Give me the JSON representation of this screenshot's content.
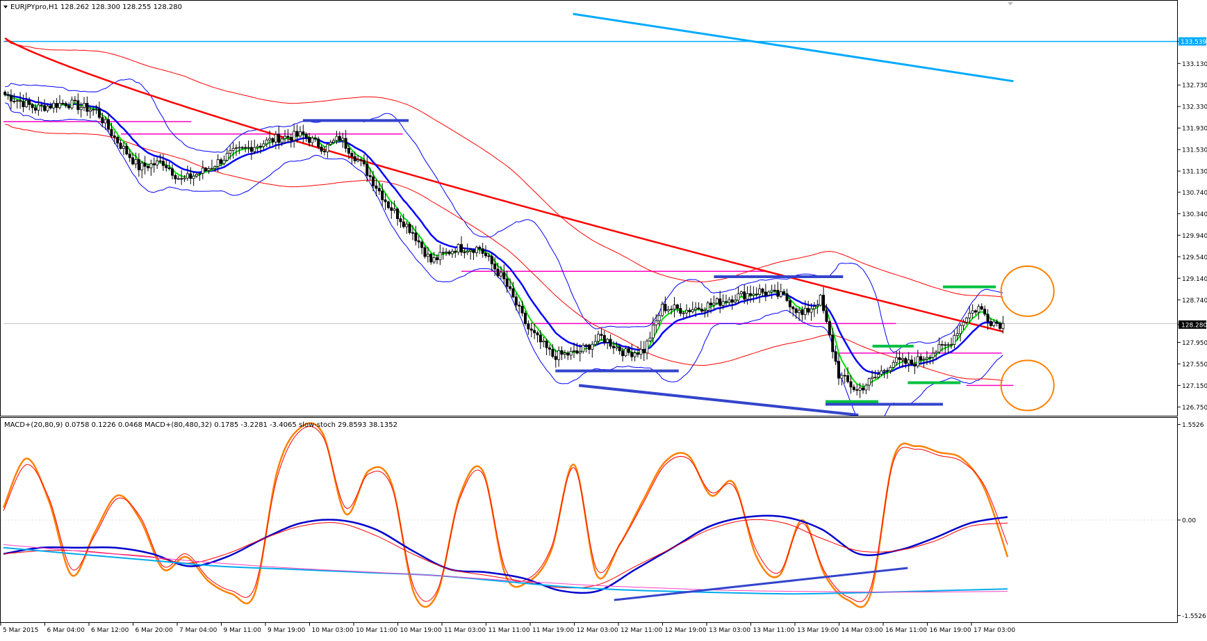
{
  "header": {
    "symbol_line": "EURJPYpro,H1  128.262 128.300 128.255 128.280",
    "indicator_line": "MACD+(20,80,9) 0.0758 0.1226 0.0468  MACD+(80,480,32) 0.1785 -3.2281 -3.4065  slow-stoch 29.8593 38.1352"
  },
  "chart_data": [
    {
      "type": "candlestick",
      "title": "EURJPYpro,H1",
      "ohlc_readout": {
        "open": 128.262,
        "high": 128.3,
        "low": 128.255,
        "close": 128.28
      },
      "ylim": [
        126.6,
        134.05
      ],
      "y_ticks": [
        "133.539",
        "133.130",
        "132.730",
        "132.330",
        "131.930",
        "131.530",
        "131.130",
        "130.740",
        "130.340",
        "129.940",
        "129.540",
        "129.140",
        "128.740",
        "128.280",
        "127.950",
        "127.550",
        "127.150",
        "126.750"
      ],
      "current_price_label": "128.280",
      "x_ticks": [
        "5 Mar 2015",
        "6 Mar 04:00",
        "6 Mar 12:00",
        "6 Mar 20:00",
        "7 Mar 04:00",
        "9 Mar 11:00",
        "9 Mar 19:00",
        "10 Mar 03:00",
        "10 Mar 11:00",
        "10 Mar 19:00",
        "11 Mar 03:00",
        "11 Mar 11:00",
        "11 Mar 19:00",
        "12 Mar 03:00",
        "12 Mar 11:00",
        "12 Mar 19:00",
        "13 Mar 03:00",
        "13 Mar 11:00",
        "13 Mar 19:00",
        "14 Mar 03:00",
        "16 Mar 11:00",
        "16 Mar 19:00",
        "17 Mar 03:00"
      ],
      "close_path": [
        [
          0,
          132.55
        ],
        [
          10,
          132.3
        ],
        [
          20,
          132.4
        ],
        [
          30,
          132.25
        ],
        [
          36,
          131.75
        ],
        [
          44,
          131.2
        ],
        [
          52,
          131.3
        ],
        [
          58,
          130.95
        ],
        [
          66,
          131.15
        ],
        [
          74,
          131.45
        ],
        [
          82,
          131.6
        ],
        [
          90,
          131.75
        ],
        [
          98,
          131.8
        ],
        [
          105,
          131.55
        ],
        [
          110,
          131.75
        ],
        [
          118,
          131.2
        ],
        [
          126,
          130.5
        ],
        [
          134,
          130.0
        ],
        [
          140,
          129.45
        ],
        [
          148,
          129.7
        ],
        [
          156,
          129.7
        ],
        [
          164,
          129.1
        ],
        [
          172,
          128.2
        ],
        [
          180,
          127.7
        ],
        [
          188,
          127.75
        ],
        [
          196,
          128.05
        ],
        [
          204,
          127.75
        ],
        [
          210,
          127.8
        ],
        [
          216,
          128.6
        ],
        [
          224,
          128.55
        ],
        [
          232,
          128.65
        ],
        [
          240,
          128.8
        ],
        [
          248,
          128.9
        ],
        [
          256,
          128.8
        ],
        [
          262,
          128.45
        ],
        [
          268,
          128.75
        ],
        [
          274,
          127.35
        ],
        [
          280,
          127.05
        ],
        [
          286,
          127.3
        ],
        [
          292,
          127.6
        ],
        [
          298,
          127.55
        ],
        [
          304,
          127.75
        ],
        [
          310,
          127.9
        ],
        [
          316,
          128.45
        ],
        [
          320,
          128.6
        ],
        [
          324,
          128.35
        ],
        [
          328,
          128.28
        ]
      ],
      "overlays": [
        {
          "name": "MA fast",
          "color": "#00e000"
        },
        {
          "name": "MA mid",
          "color": "#0000ff"
        },
        {
          "name": "MA slow",
          "color": "#ff0000"
        },
        {
          "name": "Bollinger",
          "color": "#0000ff"
        },
        {
          "name": "Envelope",
          "color": "#ff0000"
        },
        {
          "name": "Long-term MA",
          "color": "#00aaff"
        }
      ],
      "horizontal_levels": [
        {
          "price": 133.539,
          "color": "#00aaff",
          "x0": 0,
          "x1": 1.0
        },
        {
          "price": 128.3,
          "color": "#c0c0c0",
          "x0": 0,
          "x1": 1.0
        },
        {
          "price": 132.05,
          "color": "#ff00c0",
          "x0": 0.0,
          "x1": 0.16
        },
        {
          "price": 131.82,
          "color": "#ff00c0",
          "x0": 0.1,
          "x1": 0.34
        },
        {
          "price": 129.27,
          "color": "#ff00c0",
          "x0": 0.39,
          "x1": 0.65
        },
        {
          "price": 128.3,
          "color": "#ff00c0",
          "x0": 0.45,
          "x1": 0.76
        },
        {
          "price": 127.75,
          "color": "#ff00c0",
          "x0": 0.71,
          "x1": 0.85
        },
        {
          "price": 127.15,
          "color": "#ff00c0",
          "x0": 0.82,
          "x1": 0.86
        }
      ],
      "segments": [
        {
          "color": "#3344cc",
          "p0": [
            0.255,
            132.07
          ],
          "p1": [
            0.345,
            132.07
          ]
        },
        {
          "color": "#3344cc",
          "p0": [
            0.605,
            129.17
          ],
          "p1": [
            0.715,
            129.17
          ]
        },
        {
          "color": "#3344cc",
          "p0": [
            0.47,
            127.42
          ],
          "p1": [
            0.575,
            127.42
          ]
        },
        {
          "color": "#3344cc",
          "p0": [
            0.7,
            126.8
          ],
          "p1": [
            0.8,
            126.8
          ]
        },
        {
          "color": "#3344cc",
          "p0": [
            0.49,
            127.15
          ],
          "p1": [
            0.728,
            126.6
          ]
        },
        {
          "color": "#00aaff",
          "p0": [
            0.485,
            134.05
          ],
          "p1": [
            0.86,
            132.8
          ]
        },
        {
          "color": "#00c040",
          "p0": [
            0.8,
            128.98
          ],
          "p1": [
            0.845,
            128.98
          ]
        },
        {
          "color": "#00c040",
          "p0": [
            0.74,
            127.88
          ],
          "p1": [
            0.775,
            127.88
          ]
        },
        {
          "color": "#00c040",
          "p0": [
            0.77,
            127.2
          ],
          "p1": [
            0.815,
            127.2
          ]
        },
        {
          "color": "#00c040",
          "p0": [
            0.7,
            126.85
          ],
          "p1": [
            0.745,
            126.85
          ]
        }
      ],
      "annotations": [
        {
          "shape": "circle",
          "color": "#ff8000",
          "center": [
            0.872,
            128.9
          ]
        },
        {
          "shape": "circle",
          "color": "#ff8000",
          "center": [
            0.872,
            127.15
          ]
        }
      ]
    },
    {
      "type": "line",
      "title": "MACD+(20,80,9) / MACD+(80,480,32) / slow-stoch",
      "ylim": [
        -1.65,
        1.65
      ],
      "y_ticks": [
        "1.5526",
        "0.00",
        "-1.5526"
      ],
      "series": [
        {
          "name": "slow-stoch main",
          "color": "#ff8000",
          "values": [
            0.2,
            1.0,
            0.3,
            -0.9,
            -0.2,
            0.4,
            0.0,
            -0.8,
            -0.6,
            -1.0,
            -1.2,
            -1.2,
            0.8,
            1.5,
            1.4,
            0.1,
            0.8,
            0.6,
            -1.2,
            -1.2,
            0.4,
            0.8,
            -0.9,
            -1.0,
            -0.5,
            0.9,
            -0.9,
            -0.4,
            0.3,
            0.95,
            1.05,
            0.4,
            0.6,
            -0.6,
            -0.9,
            0.0,
            -0.9,
            -1.3,
            -1.2,
            1.0,
            1.2,
            1.1,
            1.0,
            0.5,
            -0.6
          ]
        },
        {
          "name": "slow-stoch signal",
          "color": "#ff0000",
          "values": [
            0.15,
            0.9,
            0.35,
            -0.8,
            -0.25,
            0.35,
            0.05,
            -0.75,
            -0.55,
            -0.95,
            -1.15,
            -1.1,
            0.7,
            1.45,
            1.35,
            0.2,
            0.75,
            0.55,
            -1.1,
            -1.15,
            0.35,
            0.75,
            -0.8,
            -0.95,
            -0.45,
            0.85,
            -0.8,
            -0.4,
            0.25,
            0.9,
            1.0,
            0.45,
            0.55,
            -0.5,
            -0.85,
            -0.05,
            -0.85,
            -1.25,
            -1.1,
            0.95,
            1.15,
            1.05,
            0.95,
            0.55,
            -0.4
          ]
        },
        {
          "name": "MACD(20,80,9) main",
          "color": "#0000cc",
          "values": [
            -0.55,
            -0.45,
            -0.45,
            -0.45,
            -0.55,
            -0.75,
            -0.6,
            -0.3,
            -0.05,
            0.0,
            -0.15,
            -0.5,
            -0.8,
            -0.85,
            -0.95,
            -1.15,
            -1.15,
            -0.8,
            -0.45,
            -0.1,
            0.05,
            0.05,
            -0.15,
            -0.55,
            -0.5,
            -0.3,
            -0.05,
            0.05
          ]
        },
        {
          "name": "MACD(20,80,9) signal",
          "color": "#ff0000",
          "values": [
            -0.55,
            -0.5,
            -0.5,
            -0.55,
            -0.6,
            -0.7,
            -0.55,
            -0.3,
            -0.1,
            -0.05,
            -0.25,
            -0.55,
            -0.8,
            -0.9,
            -1.0,
            -1.1,
            -1.05,
            -0.75,
            -0.45,
            -0.15,
            0.0,
            -0.05,
            -0.3,
            -0.5,
            -0.5,
            -0.35,
            -0.1,
            -0.05
          ]
        },
        {
          "name": "MACD(80,480,32) main",
          "color": "#00aaee",
          "values": [
            -0.45,
            -0.55,
            -0.65,
            -0.75,
            -0.8,
            -0.85,
            -0.9,
            -1.0,
            -1.1,
            -1.15,
            -1.18,
            -1.2,
            -1.18,
            -1.15,
            -1.12
          ]
        },
        {
          "name": "MACD(80,480,32) signal",
          "color": "#ff40c0",
          "values": [
            -0.4,
            -0.5,
            -0.6,
            -0.7,
            -0.78,
            -0.84,
            -0.9,
            -0.98,
            -1.05,
            -1.1,
            -1.14,
            -1.16,
            -1.17,
            -1.17,
            -1.16
          ]
        }
      ],
      "segments": [
        {
          "color": "#3344cc",
          "p0": [
            0.52,
            -1.3
          ],
          "p1": [
            0.77,
            -0.78
          ]
        }
      ]
    }
  ]
}
